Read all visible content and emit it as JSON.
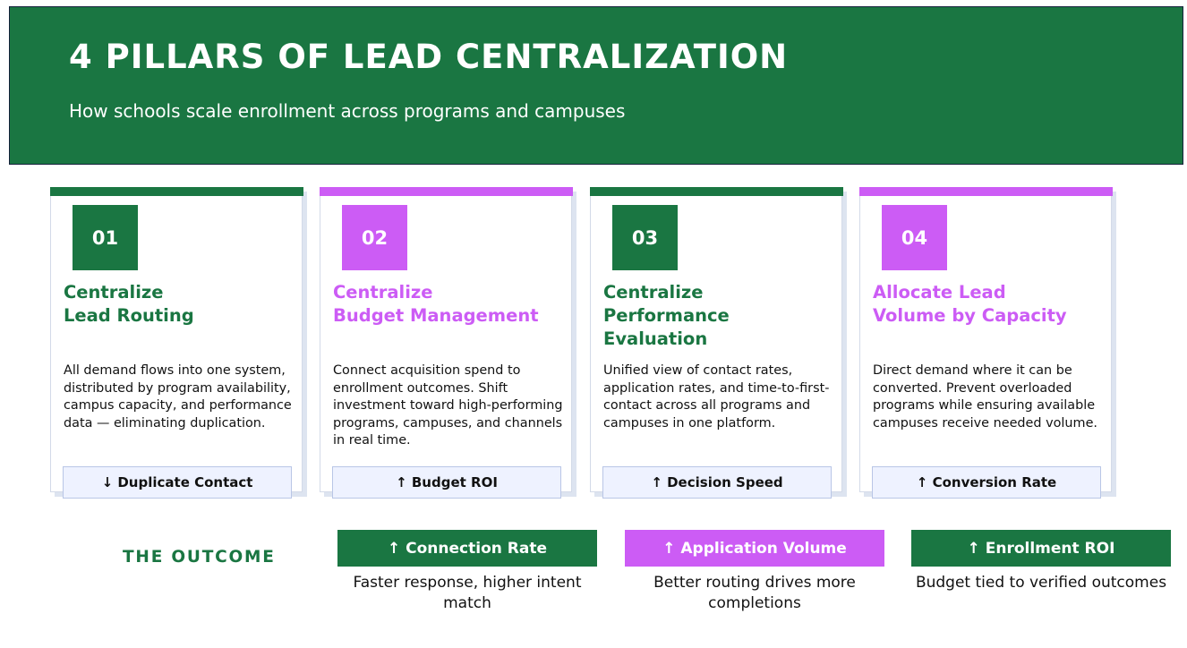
{
  "header": {
    "title": "4 PILLARS OF LEAD CENTRALIZATION",
    "subtitle": "How schools scale enrollment across programs and campuses"
  },
  "colors": {
    "green": "#1a7642",
    "purple": "#cc5cf5"
  },
  "pillars": [
    {
      "number": "01",
      "accent": "#1a7642",
      "title_lines": [
        "Centralize",
        "Lead Routing"
      ],
      "body": "All demand flows into one system, distributed by program availability, campus capacity, and performance data — eliminating duplication.",
      "metric": "↓ Duplicate Contact"
    },
    {
      "number": "02",
      "accent": "#cc5cf5",
      "title_lines": [
        "Centralize",
        "Budget Management"
      ],
      "body": "Connect acquisition spend to enrollment outcomes. Shift investment toward high-performing programs, campuses, and channels in real time.",
      "metric": "↑ Budget ROI"
    },
    {
      "number": "03",
      "accent": "#1a7642",
      "title_lines": [
        "Centralize",
        "Performance",
        "Evaluation"
      ],
      "body": "Unified view of contact rates, application rates, and time-to-first-contact across all programs and campuses in one platform.",
      "metric": "↑ Decision Speed"
    },
    {
      "number": "04",
      "accent": "#cc5cf5",
      "title_lines": [
        "Allocate Lead",
        "Volume by Capacity"
      ],
      "body": "Direct demand where it can be converted. Prevent overloaded programs while ensuring available campuses receive needed volume.",
      "metric": "↑ Conversion Rate"
    }
  ],
  "outcome": {
    "label": "THE OUTCOME",
    "items": [
      {
        "title": "↑ Connection Rate",
        "desc": "Faster response, higher intent match",
        "accent": "#1a7642"
      },
      {
        "title": "↑ Application Volume",
        "desc": "Better routing drives more completions",
        "accent": "#cc5cf5"
      },
      {
        "title": "↑ Enrollment ROI",
        "desc": "Budget tied to verified outcomes",
        "accent": "#1a7642"
      }
    ]
  }
}
